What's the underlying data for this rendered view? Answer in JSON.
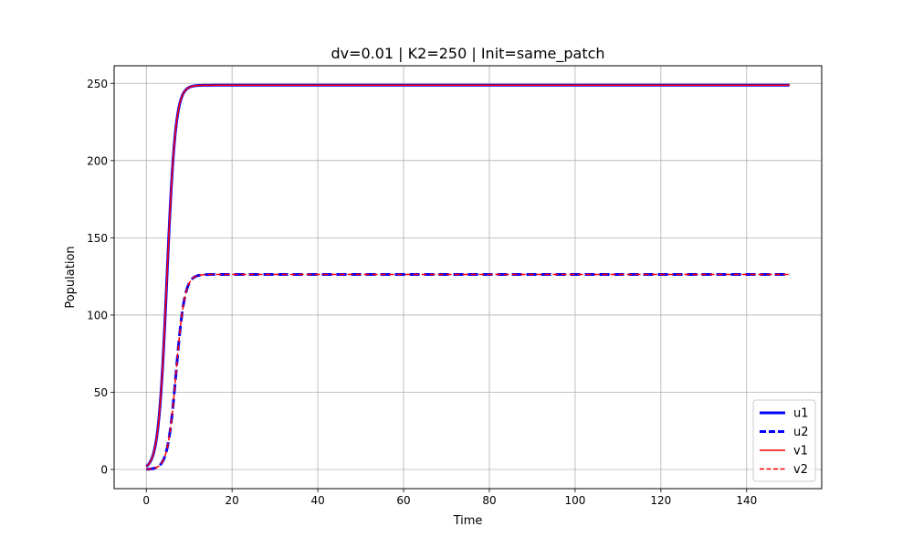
{
  "chart_data": {
    "type": "line",
    "title": "dv=0.01 | K2=250 | Init=same_patch",
    "xlabel": "Time",
    "ylabel": "Population",
    "xlim": [
      -7.5,
      157.5
    ],
    "ylim": [
      -12.4,
      261.4
    ],
    "xticks": [
      0,
      20,
      40,
      60,
      80,
      100,
      120,
      140
    ],
    "yticks": [
      0,
      50,
      100,
      150,
      200,
      250
    ],
    "xtick_labels": [
      "0",
      "20",
      "40",
      "60",
      "80",
      "100",
      "120",
      "140"
    ],
    "ytick_labels": [
      "0",
      "50",
      "100",
      "150",
      "200",
      "250"
    ],
    "grid": true,
    "legend_position": "lower-right",
    "t_end": 150,
    "series": [
      {
        "name": "u1",
        "color": "#0000ff",
        "style": "solid",
        "width": 3,
        "K": 248.8,
        "r": 1.0,
        "y0": 2.0
      },
      {
        "name": "u2",
        "color": "#0000ff",
        "style": "dashed",
        "width": 3,
        "K": 126.3,
        "r": 1.0,
        "y0": 0.12
      },
      {
        "name": "v1",
        "color": "#ff0000",
        "style": "solid",
        "width": 1.5,
        "K": 248.8,
        "r": 1.0,
        "y0": 2.0
      },
      {
        "name": "v2",
        "color": "#ff0000",
        "style": "dashed",
        "width": 1.5,
        "K": 126.3,
        "r": 1.0,
        "y0": 0.12
      }
    ]
  }
}
